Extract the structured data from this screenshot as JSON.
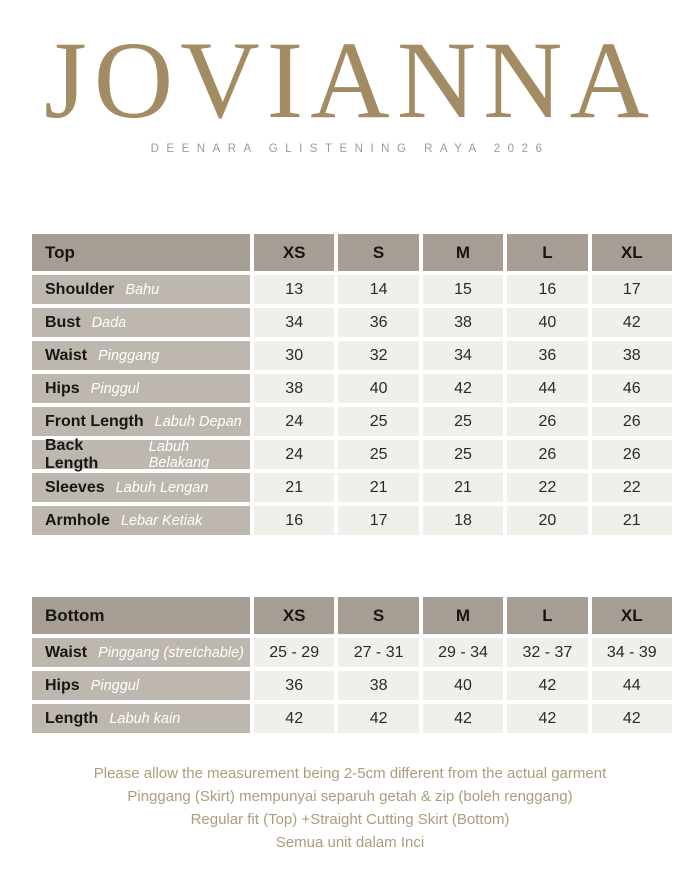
{
  "brand": {
    "title": "JOVIANNA",
    "subtitle": "DEENARA GLISTENING RAYA 2026"
  },
  "colors": {
    "title_gold": "#a38c64",
    "subtitle_gray": "#a19b8e",
    "table_header_bg": "#a69d94",
    "row_label_bg": "#beb7af",
    "value_cell_bg": "#f1efea",
    "footer_tan": "#ab9d7d"
  },
  "sizes": [
    "XS",
    "S",
    "M",
    "L",
    "XL"
  ],
  "tables": [
    {
      "name": "Top",
      "rows": [
        {
          "label": "Shoulder",
          "label_my": "Bahu",
          "values": [
            "13",
            "14",
            "15",
            "16",
            "17"
          ]
        },
        {
          "label": "Bust",
          "label_my": "Dada",
          "values": [
            "34",
            "36",
            "38",
            "40",
            "42"
          ]
        },
        {
          "label": "Waist",
          "label_my": "Pinggang",
          "values": [
            "30",
            "32",
            "34",
            "36",
            "38"
          ]
        },
        {
          "label": "Hips",
          "label_my": "Pinggul",
          "values": [
            "38",
            "40",
            "42",
            "44",
            "46"
          ]
        },
        {
          "label": "Front Length",
          "label_my": "Labuh Depan",
          "values": [
            "24",
            "25",
            "25",
            "26",
            "26"
          ]
        },
        {
          "label": "Back Length",
          "label_my": "Labuh Belakang",
          "values": [
            "24",
            "25",
            "25",
            "26",
            "26"
          ]
        },
        {
          "label": "Sleeves",
          "label_my": "Labuh Lengan",
          "values": [
            "21",
            "21",
            "21",
            "22",
            "22"
          ]
        },
        {
          "label": "Armhole",
          "label_my": "Lebar Ketiak",
          "values": [
            "16",
            "17",
            "18",
            "20",
            "21"
          ]
        }
      ]
    },
    {
      "name": "Bottom",
      "rows": [
        {
          "label": "Waist",
          "label_my": "Pinggang (stretchable)",
          "values": [
            "25 - 29",
            "27 - 31",
            "29 - 34",
            "32 - 37",
            "34 - 39"
          ]
        },
        {
          "label": "Hips",
          "label_my": "Pinggul",
          "values": [
            "36",
            "38",
            "40",
            "42",
            "44"
          ]
        },
        {
          "label": "Length",
          "label_my": "Labuh kain",
          "values": [
            "42",
            "42",
            "42",
            "42",
            "42"
          ]
        }
      ]
    }
  ],
  "footer": {
    "lines": [
      "Please allow the measurement being 2-5cm different from the actual garment",
      "Pinggang (Skirt) mempunyai separuh getah & zip (boleh renggang)",
      "Regular fit (Top) +Straight Cutting Skirt (Bottom)",
      "Semua unit dalam Inci"
    ]
  }
}
